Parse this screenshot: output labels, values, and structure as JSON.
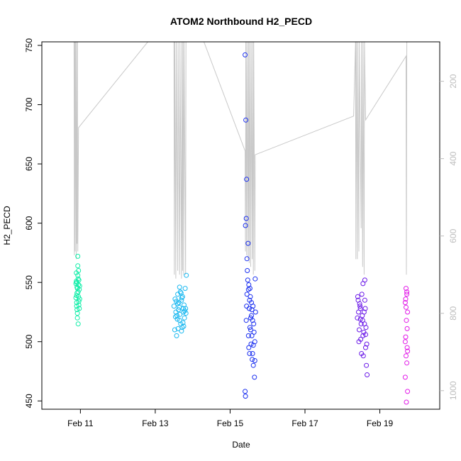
{
  "chart_data": {
    "type": "scatter",
    "title": "ATOM2 Northbound H2_PECD",
    "xlabel": "Date",
    "ylabel": "H2_PECD",
    "x_unit": "days in February",
    "xlim": [
      9.97,
      20.6
    ],
    "ylim": [
      443,
      753
    ],
    "x_ticks": [
      11,
      13,
      15,
      17,
      19
    ],
    "x_tick_labels": [
      "Feb 11",
      "Feb 13",
      "Feb 15",
      "Feb 17",
      "Feb 19"
    ],
    "y_ticks": [
      450,
      500,
      550,
      600,
      650,
      700,
      750
    ],
    "y_tick_labels": [
      "450",
      "500",
      "550",
      "600",
      "650",
      "700",
      "750"
    ],
    "right_axis": {
      "ylim": [
        98,
        1048
      ],
      "ticks": [
        200,
        400,
        600,
        800,
        1000
      ],
      "tick_labels": [
        "200",
        "400",
        "600",
        "800",
        "1000"
      ],
      "color": "#bdbdbd"
    },
    "line_color": "#c8c8c8",
    "series": [
      {
        "color": "#10eea8",
        "center_x": 10.95,
        "x_spread": 0.12,
        "points": [
          [
            10.9,
            550
          ],
          [
            10.92,
            545
          ],
          [
            10.95,
            560
          ],
          [
            10.88,
            537
          ],
          [
            10.97,
            528
          ],
          [
            10.93,
            572
          ],
          [
            10.9,
            533
          ],
          [
            10.96,
            552
          ],
          [
            10.91,
            541
          ],
          [
            10.94,
            515
          ],
          [
            10.89,
            558
          ],
          [
            10.98,
            547
          ],
          [
            10.92,
            520
          ],
          [
            10.95,
            538
          ],
          [
            10.9,
            530
          ],
          [
            10.97,
            544
          ],
          [
            10.93,
            556
          ],
          [
            10.88,
            549
          ],
          [
            10.96,
            534
          ],
          [
            10.91,
            527
          ],
          [
            10.94,
            542
          ],
          [
            10.89,
            551
          ],
          [
            10.98,
            536
          ],
          [
            10.92,
            524
          ],
          [
            10.95,
            548
          ],
          [
            10.93,
            564
          ],
          [
            10.9,
            539
          ],
          [
            10.96,
            531
          ],
          [
            10.91,
            546
          ],
          [
            10.94,
            553
          ]
        ]
      },
      {
        "color": "#1ab8f0",
        "center_x": 13.7,
        "x_spread": 0.35,
        "points": [
          [
            13.5,
            530
          ],
          [
            13.55,
            525
          ],
          [
            13.6,
            540
          ],
          [
            13.65,
            518
          ],
          [
            13.7,
            535
          ],
          [
            13.75,
            528
          ],
          [
            13.8,
            545
          ],
          [
            13.52,
            510
          ],
          [
            13.58,
            522
          ],
          [
            13.63,
            533
          ],
          [
            13.68,
            515
          ],
          [
            13.73,
            538
          ],
          [
            13.78,
            520
          ],
          [
            13.83,
            556
          ],
          [
            13.57,
            505
          ],
          [
            13.62,
            527
          ],
          [
            13.67,
            542
          ],
          [
            13.72,
            512
          ],
          [
            13.77,
            531
          ],
          [
            13.82,
            524
          ],
          [
            13.53,
            536
          ],
          [
            13.59,
            519
          ],
          [
            13.64,
            529
          ],
          [
            13.69,
            541
          ],
          [
            13.74,
            516
          ],
          [
            13.79,
            526
          ],
          [
            13.56,
            534
          ],
          [
            13.61,
            511
          ],
          [
            13.66,
            523
          ],
          [
            13.71,
            537
          ],
          [
            13.76,
            513
          ],
          [
            13.81,
            528
          ],
          [
            13.54,
            521
          ],
          [
            13.6,
            532
          ],
          [
            13.65,
            546
          ],
          [
            13.7,
            509
          ],
          [
            13.75,
            525
          ]
        ]
      },
      {
        "color": "#1a2ff0",
        "center_x": 15.55,
        "x_spread": 0.4,
        "points": [
          [
            15.4,
            742
          ],
          [
            15.42,
            687
          ],
          [
            15.44,
            637
          ],
          [
            15.43,
            604
          ],
          [
            15.41,
            598
          ],
          [
            15.48,
            583
          ],
          [
            15.45,
            570
          ],
          [
            15.5,
            548
          ],
          [
            15.52,
            535
          ],
          [
            15.55,
            520
          ],
          [
            15.58,
            505
          ],
          [
            15.6,
            490
          ],
          [
            15.62,
            480
          ],
          [
            15.65,
            470
          ],
          [
            15.4,
            458
          ],
          [
            15.41,
            454
          ],
          [
            15.46,
            560
          ],
          [
            15.49,
            544
          ],
          [
            15.51,
            528
          ],
          [
            15.53,
            512
          ],
          [
            15.56,
            498
          ],
          [
            15.59,
            485
          ],
          [
            15.61,
            530
          ],
          [
            15.63,
            515
          ],
          [
            15.66,
            500
          ],
          [
            15.68,
            525
          ],
          [
            15.47,
            552
          ],
          [
            15.54,
            538
          ],
          [
            15.57,
            522
          ],
          [
            15.64,
            508
          ],
          [
            15.44,
            530
          ],
          [
            15.5,
            495
          ],
          [
            15.55,
            510
          ],
          [
            15.6,
            518
          ],
          [
            15.67,
            553
          ],
          [
            15.45,
            540
          ],
          [
            15.52,
            490
          ],
          [
            15.58,
            527
          ],
          [
            15.62,
            497
          ],
          [
            15.66,
            484
          ],
          [
            15.43,
            518
          ],
          [
            15.49,
            505
          ],
          [
            15.53,
            545
          ],
          [
            15.57,
            533
          ]
        ]
      },
      {
        "color": "#6a18e8",
        "center_x": 18.55,
        "x_spread": 0.3,
        "points": [
          [
            18.4,
            520
          ],
          [
            18.42,
            535
          ],
          [
            18.45,
            510
          ],
          [
            18.48,
            528
          ],
          [
            18.5,
            515
          ],
          [
            18.52,
            540
          ],
          [
            18.55,
            505
          ],
          [
            18.58,
            525
          ],
          [
            18.6,
            552
          ],
          [
            18.62,
            495
          ],
          [
            18.64,
            480
          ],
          [
            18.66,
            472
          ],
          [
            18.44,
            500
          ],
          [
            18.47,
            530
          ],
          [
            18.51,
            490
          ],
          [
            18.54,
            518
          ],
          [
            18.57,
            508
          ],
          [
            18.6,
            535
          ],
          [
            18.63,
            512
          ],
          [
            18.43,
            525
          ],
          [
            18.46,
            532
          ],
          [
            18.49,
            502
          ],
          [
            18.53,
            522
          ],
          [
            18.56,
            488
          ],
          [
            18.59,
            515
          ],
          [
            18.61,
            528
          ],
          [
            18.65,
            498
          ],
          [
            18.41,
            538
          ],
          [
            18.48,
            519
          ],
          [
            18.55,
            549
          ],
          [
            18.62,
            506
          ]
        ]
      },
      {
        "color": "#e21ae8",
        "center_x": 19.72,
        "x_spread": 0.12,
        "points": [
          [
            19.7,
            545
          ],
          [
            19.72,
            540
          ],
          [
            19.68,
            533
          ],
          [
            19.74,
            525
          ],
          [
            19.71,
            518
          ],
          [
            19.69,
            504
          ],
          [
            19.73,
            495
          ],
          [
            19.7,
            488
          ],
          [
            19.72,
            482
          ],
          [
            19.68,
            470
          ],
          [
            19.74,
            458
          ],
          [
            19.71,
            449
          ],
          [
            19.69,
            536
          ],
          [
            19.73,
            511
          ],
          [
            19.7,
            529
          ],
          [
            19.72,
            542
          ],
          [
            19.68,
            500
          ],
          [
            19.74,
            492
          ]
        ]
      }
    ],
    "right_axis_line": {
      "points": [
        [
          10.83,
          95
        ],
        [
          10.84,
          650
        ],
        [
          10.85,
          95
        ],
        [
          10.86,
          640
        ],
        [
          10.87,
          95
        ],
        [
          10.89,
          660
        ],
        [
          10.9,
          95
        ],
        [
          10.91,
          620
        ],
        [
          10.92,
          95
        ],
        [
          10.93,
          640
        ],
        [
          10.95,
          320
        ],
        [
          12.8,
          95
        ],
        [
          13.5,
          95
        ],
        [
          13.51,
          700
        ],
        [
          13.52,
          95
        ],
        [
          13.55,
          710
        ],
        [
          13.56,
          95
        ],
        [
          13.6,
          690
        ],
        [
          13.61,
          95
        ],
        [
          13.65,
          700
        ],
        [
          13.66,
          95
        ],
        [
          13.7,
          710
        ],
        [
          13.71,
          95
        ],
        [
          13.73,
          690
        ],
        [
          13.74,
          95
        ],
        [
          13.76,
          700
        ],
        [
          13.77,
          95
        ],
        [
          13.81,
          700
        ],
        [
          13.82,
          95
        ],
        [
          14.3,
          95
        ],
        [
          15.4,
          380
        ],
        [
          15.41,
          640
        ],
        [
          15.42,
          95
        ],
        [
          15.44,
          650
        ],
        [
          15.45,
          95
        ],
        [
          15.48,
          660
        ],
        [
          15.49,
          95
        ],
        [
          15.51,
          670
        ],
        [
          15.52,
          95
        ],
        [
          15.55,
          680
        ],
        [
          15.56,
          95
        ],
        [
          15.59,
          660
        ],
        [
          15.6,
          95
        ],
        [
          15.62,
          700
        ],
        [
          15.63,
          95
        ],
        [
          15.66,
          690
        ],
        [
          15.67,
          390
        ],
        [
          18.3,
          290
        ],
        [
          18.35,
          95
        ],
        [
          18.36,
          660
        ],
        [
          18.37,
          95
        ],
        [
          18.4,
          660
        ],
        [
          18.41,
          95
        ],
        [
          18.44,
          640
        ],
        [
          18.45,
          95
        ],
        [
          18.5,
          580
        ],
        [
          18.51,
          95
        ],
        [
          18.54,
          680
        ],
        [
          18.55,
          95
        ],
        [
          18.58,
          700
        ],
        [
          18.59,
          95
        ],
        [
          18.62,
          300
        ],
        [
          19.7,
          135
        ],
        [
          19.71,
          700
        ],
        [
          19.72,
          95
        ]
      ]
    }
  }
}
